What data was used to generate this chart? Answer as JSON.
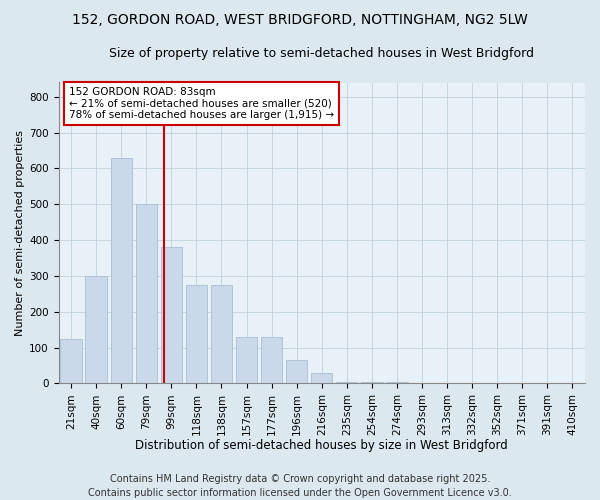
{
  "title1": "152, GORDON ROAD, WEST BRIDGFORD, NOTTINGHAM, NG2 5LW",
  "title2": "Size of property relative to semi-detached houses in West Bridgford",
  "xlabel": "Distribution of semi-detached houses by size in West Bridgford",
  "ylabel": "Number of semi-detached properties",
  "bin_labels": [
    "21sqm",
    "40sqm",
    "60sqm",
    "79sqm",
    "99sqm",
    "118sqm",
    "138sqm",
    "157sqm",
    "177sqm",
    "196sqm",
    "216sqm",
    "235sqm",
    "254sqm",
    "274sqm",
    "293sqm",
    "313sqm",
    "332sqm",
    "352sqm",
    "371sqm",
    "391sqm",
    "410sqm"
  ],
  "bar_values": [
    125,
    300,
    630,
    500,
    380,
    275,
    275,
    130,
    130,
    65,
    30,
    5,
    5,
    5,
    2,
    2,
    2,
    2,
    2,
    2,
    2
  ],
  "bar_color": "#c9d9e9",
  "bar_edge_color": "#a8bed4",
  "vline_color": "#cc0000",
  "vline_x": 4,
  "annotation_title": "152 GORDON ROAD: 83sqm",
  "annotation_line1": "← 21% of semi-detached houses are smaller (520)",
  "annotation_line2": "78% of semi-detached houses are larger (1,915) →",
  "annotation_box_facecolor": "#ffffff",
  "annotation_box_edgecolor": "#cc0000",
  "ylim": [
    0,
    840
  ],
  "yticks": [
    0,
    100,
    200,
    300,
    400,
    500,
    600,
    700,
    800
  ],
  "bg_color": "#dce8f0",
  "plot_bg_color": "#e8f0f8",
  "grid_color": "#b8ccd8",
  "footer1": "Contains HM Land Registry data © Crown copyright and database right 2025.",
  "footer2": "Contains public sector information licensed under the Open Government Licence v3.0.",
  "title1_fontsize": 10,
  "title2_fontsize": 9,
  "xlabel_fontsize": 8.5,
  "ylabel_fontsize": 8,
  "tick_fontsize": 7.5,
  "annot_fontsize": 7.5,
  "footer_fontsize": 7
}
